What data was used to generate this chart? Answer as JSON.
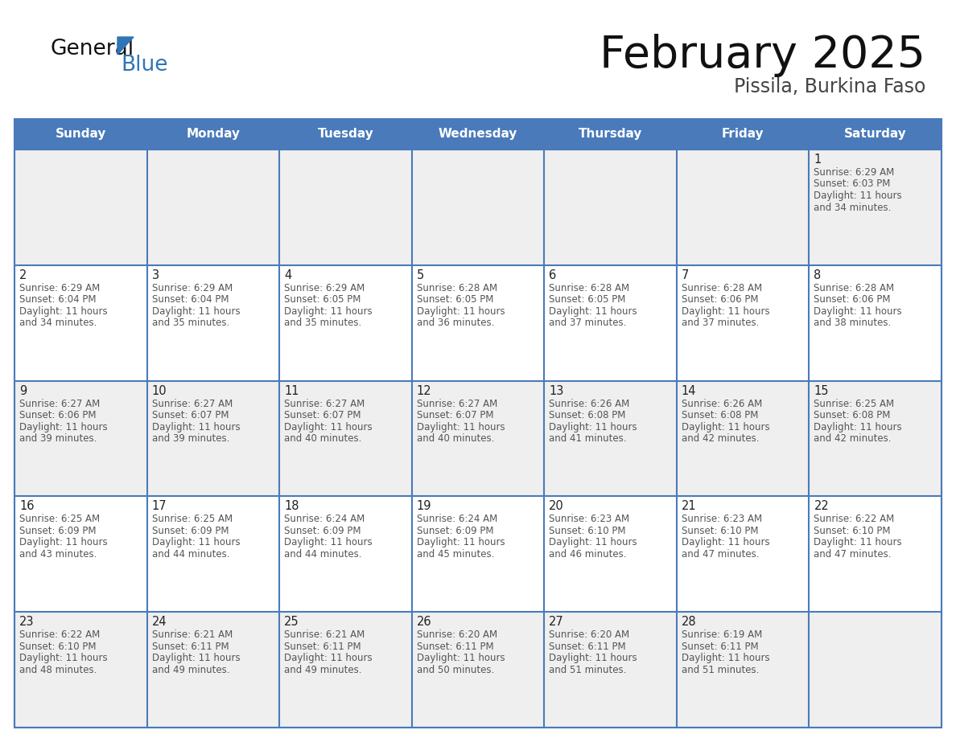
{
  "title": "February 2025",
  "subtitle": "Pissila, Burkina Faso",
  "days_of_week": [
    "Sunday",
    "Monday",
    "Tuesday",
    "Wednesday",
    "Thursday",
    "Friday",
    "Saturday"
  ],
  "header_bg_color": "#4a7aba",
  "header_text_color": "#FFFFFF",
  "cell_bg_row0": "#EEEEEE",
  "cell_bg_row1": "#FFFFFF",
  "cell_bg_row2": "#EEEEEE",
  "cell_bg_row3": "#FFFFFF",
  "cell_bg_row4": "#EEEEEE",
  "row_bg_colors": [
    "#EFEFEF",
    "#FFFFFF",
    "#EFEFEF",
    "#FFFFFF",
    "#EFEFEF"
  ],
  "border_color": "#4a7aba",
  "outer_border_color": "#4a7aba",
  "day_num_color": "#222222",
  "info_text_color": "#555555",
  "title_color": "#111111",
  "subtitle_color": "#444444",
  "general_text_color": "#111111",
  "general_blue_color": "#2e75b6",
  "triangle_color": "#2e75b6",
  "calendar_data": [
    {
      "day": 1,
      "col": 6,
      "row": 0,
      "sunrise": "6:29 AM",
      "sunset": "6:03 PM",
      "daylight_hours": 11,
      "daylight_minutes": 34
    },
    {
      "day": 2,
      "col": 0,
      "row": 1,
      "sunrise": "6:29 AM",
      "sunset": "6:04 PM",
      "daylight_hours": 11,
      "daylight_minutes": 34
    },
    {
      "day": 3,
      "col": 1,
      "row": 1,
      "sunrise": "6:29 AM",
      "sunset": "6:04 PM",
      "daylight_hours": 11,
      "daylight_minutes": 35
    },
    {
      "day": 4,
      "col": 2,
      "row": 1,
      "sunrise": "6:29 AM",
      "sunset": "6:05 PM",
      "daylight_hours": 11,
      "daylight_minutes": 35
    },
    {
      "day": 5,
      "col": 3,
      "row": 1,
      "sunrise": "6:28 AM",
      "sunset": "6:05 PM",
      "daylight_hours": 11,
      "daylight_minutes": 36
    },
    {
      "day": 6,
      "col": 4,
      "row": 1,
      "sunrise": "6:28 AM",
      "sunset": "6:05 PM",
      "daylight_hours": 11,
      "daylight_minutes": 37
    },
    {
      "day": 7,
      "col": 5,
      "row": 1,
      "sunrise": "6:28 AM",
      "sunset": "6:06 PM",
      "daylight_hours": 11,
      "daylight_minutes": 37
    },
    {
      "day": 8,
      "col": 6,
      "row": 1,
      "sunrise": "6:28 AM",
      "sunset": "6:06 PM",
      "daylight_hours": 11,
      "daylight_minutes": 38
    },
    {
      "day": 9,
      "col": 0,
      "row": 2,
      "sunrise": "6:27 AM",
      "sunset": "6:06 PM",
      "daylight_hours": 11,
      "daylight_minutes": 39
    },
    {
      "day": 10,
      "col": 1,
      "row": 2,
      "sunrise": "6:27 AM",
      "sunset": "6:07 PM",
      "daylight_hours": 11,
      "daylight_minutes": 39
    },
    {
      "day": 11,
      "col": 2,
      "row": 2,
      "sunrise": "6:27 AM",
      "sunset": "6:07 PM",
      "daylight_hours": 11,
      "daylight_minutes": 40
    },
    {
      "day": 12,
      "col": 3,
      "row": 2,
      "sunrise": "6:27 AM",
      "sunset": "6:07 PM",
      "daylight_hours": 11,
      "daylight_minutes": 40
    },
    {
      "day": 13,
      "col": 4,
      "row": 2,
      "sunrise": "6:26 AM",
      "sunset": "6:08 PM",
      "daylight_hours": 11,
      "daylight_minutes": 41
    },
    {
      "day": 14,
      "col": 5,
      "row": 2,
      "sunrise": "6:26 AM",
      "sunset": "6:08 PM",
      "daylight_hours": 11,
      "daylight_minutes": 42
    },
    {
      "day": 15,
      "col": 6,
      "row": 2,
      "sunrise": "6:25 AM",
      "sunset": "6:08 PM",
      "daylight_hours": 11,
      "daylight_minutes": 42
    },
    {
      "day": 16,
      "col": 0,
      "row": 3,
      "sunrise": "6:25 AM",
      "sunset": "6:09 PM",
      "daylight_hours": 11,
      "daylight_minutes": 43
    },
    {
      "day": 17,
      "col": 1,
      "row": 3,
      "sunrise": "6:25 AM",
      "sunset": "6:09 PM",
      "daylight_hours": 11,
      "daylight_minutes": 44
    },
    {
      "day": 18,
      "col": 2,
      "row": 3,
      "sunrise": "6:24 AM",
      "sunset": "6:09 PM",
      "daylight_hours": 11,
      "daylight_minutes": 44
    },
    {
      "day": 19,
      "col": 3,
      "row": 3,
      "sunrise": "6:24 AM",
      "sunset": "6:09 PM",
      "daylight_hours": 11,
      "daylight_minutes": 45
    },
    {
      "day": 20,
      "col": 4,
      "row": 3,
      "sunrise": "6:23 AM",
      "sunset": "6:10 PM",
      "daylight_hours": 11,
      "daylight_minutes": 46
    },
    {
      "day": 21,
      "col": 5,
      "row": 3,
      "sunrise": "6:23 AM",
      "sunset": "6:10 PM",
      "daylight_hours": 11,
      "daylight_minutes": 47
    },
    {
      "day": 22,
      "col": 6,
      "row": 3,
      "sunrise": "6:22 AM",
      "sunset": "6:10 PM",
      "daylight_hours": 11,
      "daylight_minutes": 47
    },
    {
      "day": 23,
      "col": 0,
      "row": 4,
      "sunrise": "6:22 AM",
      "sunset": "6:10 PM",
      "daylight_hours": 11,
      "daylight_minutes": 48
    },
    {
      "day": 24,
      "col": 1,
      "row": 4,
      "sunrise": "6:21 AM",
      "sunset": "6:11 PM",
      "daylight_hours": 11,
      "daylight_minutes": 49
    },
    {
      "day": 25,
      "col": 2,
      "row": 4,
      "sunrise": "6:21 AM",
      "sunset": "6:11 PM",
      "daylight_hours": 11,
      "daylight_minutes": 49
    },
    {
      "day": 26,
      "col": 3,
      "row": 4,
      "sunrise": "6:20 AM",
      "sunset": "6:11 PM",
      "daylight_hours": 11,
      "daylight_minutes": 50
    },
    {
      "day": 27,
      "col": 4,
      "row": 4,
      "sunrise": "6:20 AM",
      "sunset": "6:11 PM",
      "daylight_hours": 11,
      "daylight_minutes": 51
    },
    {
      "day": 28,
      "col": 5,
      "row": 4,
      "sunrise": "6:19 AM",
      "sunset": "6:11 PM",
      "daylight_hours": 11,
      "daylight_minutes": 51
    }
  ]
}
